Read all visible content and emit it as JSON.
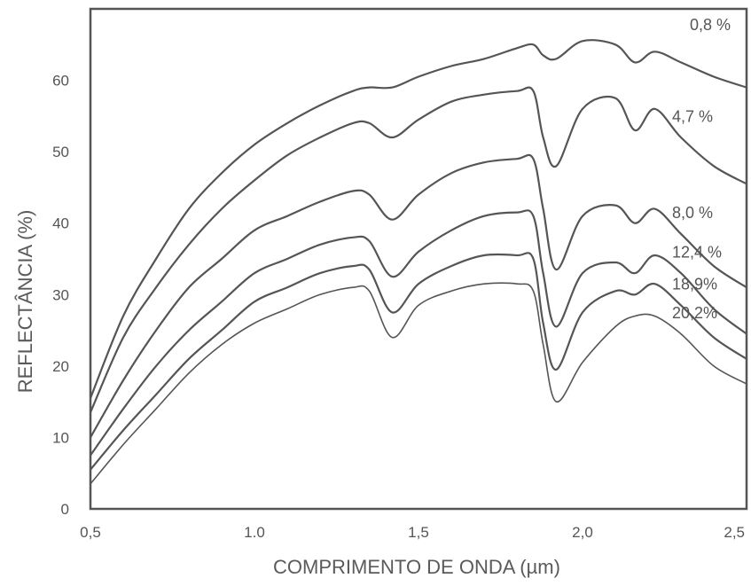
{
  "chart_data": {
    "type": "line",
    "title": "",
    "xlabel": "COMPRIMENTO DE ONDA (µm)",
    "ylabel": "REFLECTÂNCIA (%)",
    "xlim": [
      0.5,
      2.5
    ],
    "ylim": [
      0,
      70
    ],
    "x_ticks": [
      "0,5",
      "1.0",
      "1,5",
      "2,0",
      "2,5"
    ],
    "x_tick_values": [
      0.5,
      1.0,
      1.5,
      2.0,
      2.5
    ],
    "y_ticks": [
      "0",
      "10",
      "20",
      "30",
      "40",
      "50",
      "60"
    ],
    "y_tick_values": [
      0,
      10,
      20,
      30,
      40,
      50,
      60
    ],
    "grid": false,
    "legend": "labels at right end of each curve",
    "line_color": "#555555",
    "x": [
      0.5,
      0.6,
      0.7,
      0.8,
      0.9,
      1.0,
      1.1,
      1.2,
      1.3,
      1.35,
      1.42,
      1.5,
      1.6,
      1.7,
      1.8,
      1.85,
      1.88,
      1.92,
      2.0,
      2.1,
      2.16,
      2.22,
      2.3,
      2.4,
      2.5
    ],
    "series": [
      {
        "name": "0,8 %",
        "values": [
          15.5,
          27,
          35,
          42,
          47,
          51,
          54,
          56.5,
          58.5,
          59,
          59,
          60.5,
          62,
          63,
          64.5,
          65,
          63.5,
          63,
          65.5,
          65,
          62.5,
          64,
          62.5,
          60.5,
          59
        ]
      },
      {
        "name": "4,7 %",
        "values": [
          13.5,
          24,
          31,
          37,
          42,
          46,
          49.5,
          52,
          54,
          54,
          52,
          54.5,
          57,
          58,
          58.5,
          58.5,
          52,
          48,
          56,
          57.5,
          53,
          56,
          52,
          48,
          45.5
        ]
      },
      {
        "name": "8,0 %",
        "values": [
          10,
          18,
          25,
          31,
          35,
          39,
          41,
          43,
          44.5,
          44,
          40.5,
          44,
          47,
          48.5,
          49,
          49,
          42,
          33.5,
          41,
          42.5,
          40,
          42,
          38.5,
          34,
          31
        ]
      },
      {
        "name": "12,4 %",
        "values": [
          7.5,
          14,
          20,
          25,
          29,
          33,
          35,
          37,
          38,
          37.5,
          32.5,
          36,
          39,
          41,
          41.5,
          41,
          33,
          25.5,
          33,
          34.5,
          33,
          35.5,
          33,
          28,
          24.5
        ]
      },
      {
        "name": "18,9%",
        "values": [
          5.5,
          11,
          16,
          21,
          25,
          29,
          31,
          33,
          34,
          33.5,
          27.5,
          31.5,
          34,
          35.5,
          35.5,
          35,
          26,
          19.5,
          27.5,
          30.5,
          30,
          31.5,
          28.5,
          24,
          21
        ]
      },
      {
        "name": "20,2%",
        "values": [
          3.5,
          9,
          14,
          19,
          23,
          26,
          28,
          30,
          31,
          30.5,
          24,
          28.5,
          30.5,
          31.5,
          31.5,
          30.5,
          23,
          15,
          20.5,
          25.5,
          27,
          27,
          24.5,
          20,
          17.5
        ]
      }
    ]
  }
}
